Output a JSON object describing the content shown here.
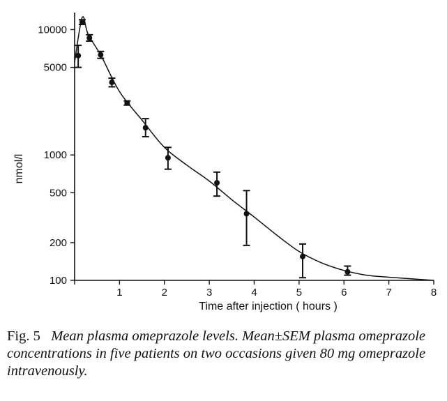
{
  "chart_data": {
    "type": "scatter",
    "title": "",
    "xlabel": "Time after injection ( hours )",
    "ylabel": "nmol/l",
    "xlim": [
      0,
      8
    ],
    "ylim": [
      100,
      13000
    ],
    "yscale": "log",
    "x_ticks": [
      0,
      1,
      2,
      3,
      4,
      5,
      6,
      7,
      8
    ],
    "x_tick_labels": [
      "",
      "1",
      "2",
      "3",
      "4",
      "5",
      "6",
      "7",
      "8"
    ],
    "y_ticks": [
      100,
      200,
      500,
      1000,
      5000,
      10000
    ],
    "y_tick_labels": [
      "100",
      "200",
      "500",
      "1000",
      "5000",
      "10000"
    ],
    "grid": false,
    "series": [
      {
        "points": [
          {
            "x": 0.08,
            "y": 6200,
            "err_low": 5000,
            "err_high": 7500
          },
          {
            "x": 0.17,
            "y": 11500,
            "err_low": 11000,
            "err_high": 12000
          },
          {
            "x": 0.33,
            "y": 8600,
            "err_low": 8100,
            "err_high": 9100
          },
          {
            "x": 0.58,
            "y": 6300,
            "err_low": 5900,
            "err_high": 6700
          },
          {
            "x": 0.83,
            "y": 3800,
            "err_low": 3500,
            "err_high": 4100
          },
          {
            "x": 1.17,
            "y": 2600,
            "err_low": 2500,
            "err_high": 2700
          },
          {
            "x": 1.58,
            "y": 1650,
            "err_low": 1400,
            "err_high": 1950
          },
          {
            "x": 2.08,
            "y": 950,
            "err_low": 770,
            "err_high": 1150
          },
          {
            "x": 3.17,
            "y": 600,
            "err_low": 470,
            "err_high": 730
          },
          {
            "x": 3.83,
            "y": 340,
            "err_low": 190,
            "err_high": 520
          },
          {
            "x": 5.08,
            "y": 155,
            "err_low": 105,
            "err_high": 195
          },
          {
            "x": 6.08,
            "y": 117,
            "err_low": 110,
            "err_high": 130
          }
        ],
        "fitted_curve": [
          {
            "x": 0.0,
            "y": 5500
          },
          {
            "x": 0.17,
            "y": 12500
          },
          {
            "x": 0.3,
            "y": 9200
          },
          {
            "x": 0.6,
            "y": 6100
          },
          {
            "x": 1.0,
            "y": 3200
          },
          {
            "x": 1.5,
            "y": 1900
          },
          {
            "x": 2.0,
            "y": 1150
          },
          {
            "x": 2.5,
            "y": 830
          },
          {
            "x": 3.0,
            "y": 620
          },
          {
            "x": 3.5,
            "y": 440
          },
          {
            "x": 4.0,
            "y": 320
          },
          {
            "x": 4.5,
            "y": 230
          },
          {
            "x": 5.0,
            "y": 170
          },
          {
            "x": 5.5,
            "y": 138
          },
          {
            "x": 6.0,
            "y": 120
          },
          {
            "x": 6.5,
            "y": 110
          },
          {
            "x": 7.0,
            "y": 106
          },
          {
            "x": 7.5,
            "y": 103
          },
          {
            "x": 8.0,
            "y": 100
          }
        ]
      }
    ]
  },
  "caption": {
    "label": "Fig. 5",
    "text": "Mean plasma omeprazole levels. Mean±SEM plasma omeprazole concentrations in five patients on two occasions given 80 mg omeprazole intravenously."
  }
}
